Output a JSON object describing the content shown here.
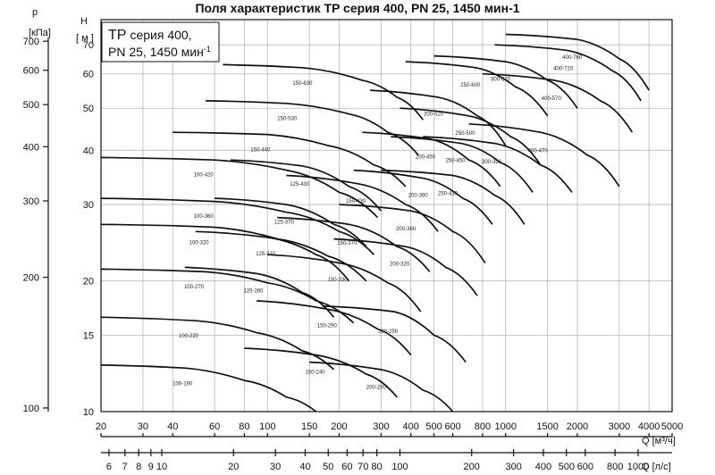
{
  "chart_data": {
    "type": "line",
    "title": "Поля характеристик TP серия 400, PN 25, 1450 мин-1",
    "legend_box": {
      "line1": "TP",
      "line1b": "серия 400,",
      "line2": "PN 25, 1450 мин",
      "line2sup": "-1"
    },
    "x_axis_label": "Q [м³/ч]",
    "x_axis_ticks": [
      "20",
      "30",
      "40",
      "60",
      "80",
      "100",
      "150",
      "200",
      "300",
      "400",
      "500",
      "600",
      "800",
      "1000",
      "1500",
      "2000",
      "3000",
      "4000",
      "5000"
    ],
    "secondary_x_axis_label": "Q [л/с]",
    "secondary_x_axis_ticks": [
      "6",
      "7",
      "8",
      "9",
      "10",
      "20",
      "30",
      "40",
      "50",
      "60",
      "70",
      "80",
      "100",
      "200",
      "300",
      "400",
      "500",
      "600",
      "800",
      "1000"
    ],
    "y_axis_label": "H [м]",
    "y_axis_label_top": "H",
    "y_axis_label_unit": "[ м ]",
    "y_axis_ticks": [
      "10",
      "15",
      "20",
      "30",
      "40",
      "50",
      "60",
      "70"
    ],
    "secondary_y_axis_label_top": "p",
    "secondary_y_axis_label_unit": "[кПа]",
    "secondary_y_axis_ticks": [
      "100",
      "200",
      "300",
      "400",
      "500",
      "600",
      "700"
    ],
    "x_scale": "log",
    "y_scale": "log",
    "xlim": [
      20,
      5000
    ],
    "ylim": [
      10,
      80
    ],
    "grid": true,
    "series": [
      {
        "name": "100-190",
        "x": [
          20,
          45,
          80,
          120,
          160
        ],
        "y": [
          12.8,
          12.6,
          11.8,
          10.8,
          10
        ]
      },
      {
        "name": "100-220",
        "x": [
          20,
          50,
          90,
          140,
          190
        ],
        "y": [
          16.5,
          16.2,
          15.2,
          13.8,
          12.5
        ]
      },
      {
        "name": "100-270",
        "x": [
          20,
          55,
          100,
          160,
          230
        ],
        "y": [
          21.3,
          21,
          19.8,
          18,
          16
        ]
      },
      {
        "name": "100-320",
        "x": [
          20,
          60,
          110,
          180,
          260
        ],
        "y": [
          27,
          26.6,
          25,
          22.8,
          20
        ]
      },
      {
        "name": "100-360",
        "x": [
          20,
          60,
          120,
          200,
          280
        ],
        "y": [
          31,
          30.5,
          28.8,
          26,
          23
        ]
      },
      {
        "name": "100-420",
        "x": [
          20,
          60,
          120,
          200,
          290
        ],
        "y": [
          38.5,
          38,
          36,
          32,
          28
        ]
      },
      {
        "name": "150-440",
        "x": [
          40,
          100,
          180,
          280,
          380
        ],
        "y": [
          44,
          43.5,
          41,
          37,
          33
        ]
      },
      {
        "name": "150-530",
        "x": [
          55,
          120,
          220,
          320,
          430
        ],
        "y": [
          52,
          51.3,
          48.5,
          44,
          39
        ]
      },
      {
        "name": "150-630",
        "x": [
          65,
          140,
          250,
          350,
          450
        ],
        "y": [
          63,
          62,
          58,
          53,
          47
        ]
      },
      {
        "name": "125-260",
        "x": [
          45,
          90,
          140,
          190
        ],
        "y": [
          21.5,
          20.8,
          18.8,
          16.5
        ]
      },
      {
        "name": "125-310",
        "x": [
          50,
          100,
          160,
          220
        ],
        "y": [
          26,
          25.2,
          23,
          20
        ]
      },
      {
        "name": "125-370",
        "x": [
          60,
          120,
          190,
          260
        ],
        "y": [
          31,
          30,
          27,
          24
        ]
      },
      {
        "name": "125-430",
        "x": [
          70,
          140,
          220,
          300
        ],
        "y": [
          38,
          36.8,
          33,
          29
        ]
      },
      {
        "name": "150-240",
        "x": [
          80,
          160,
          260,
          350
        ],
        "y": [
          14,
          13.5,
          12.2,
          10.8
        ]
      },
      {
        "name": "150-290",
        "x": [
          90,
          180,
          290,
          400
        ],
        "y": [
          18,
          17.2,
          15.5,
          13.5
        ]
      },
      {
        "name": "150-330",
        "x": [
          100,
          200,
          320,
          440
        ],
        "y": [
          23,
          22,
          19.8,
          17
        ]
      },
      {
        "name": "150-370",
        "x": [
          110,
          220,
          350,
          480
        ],
        "y": [
          28,
          27,
          24,
          21
        ]
      },
      {
        "name": "150-430",
        "x": [
          120,
          240,
          380,
          520
        ],
        "y": [
          35,
          33.5,
          30,
          26
        ]
      },
      {
        "name": "200-200",
        "x": [
          150,
          300,
          450,
          600
        ],
        "y": [
          13,
          12.5,
          11.2,
          10
        ]
      },
      {
        "name": "200-250",
        "x": [
          170,
          340,
          500,
          680
        ],
        "y": [
          17.5,
          17,
          15,
          13
        ]
      },
      {
        "name": "200-320",
        "x": [
          190,
          380,
          560,
          760
        ],
        "y": [
          25,
          24,
          21.5,
          18.5
        ]
      },
      {
        "name": "200-360",
        "x": [
          200,
          400,
          600,
          820
        ],
        "y": [
          30,
          29,
          26,
          22
        ]
      },
      {
        "name": "200-390",
        "x": [
          230,
          450,
          660,
          880
        ],
        "y": [
          36,
          34.5,
          31,
          27
        ]
      },
      {
        "name": "200-450",
        "x": [
          250,
          480,
          700,
          950
        ],
        "y": [
          44,
          42.5,
          38,
          33
        ]
      },
      {
        "name": "200-520",
        "x": [
          270,
          520,
          760,
          1000
        ],
        "y": [
          55,
          53,
          48,
          41
        ]
      },
      {
        "name": "250-410",
        "x": [
          300,
          600,
          900,
          1200
        ],
        "y": [
          36,
          35,
          31.5,
          27
        ]
      },
      {
        "name": "250-450",
        "x": [
          330,
          650,
          950,
          1300
        ],
        "y": [
          43,
          41.5,
          37.5,
          32
        ]
      },
      {
        "name": "250-500",
        "x": [
          360,
          700,
          1050,
          1400
        ],
        "y": [
          50,
          48,
          43,
          37
        ]
      },
      {
        "name": "250-600",
        "x": [
          380,
          750,
          1100,
          1500
        ],
        "y": [
          64,
          62,
          56,
          48
        ]
      },
      {
        "name": "300-390",
        "x": [
          450,
          900,
          1400,
          1900
        ],
        "y": [
          43,
          41.5,
          37,
          32
        ]
      },
      {
        "name": "300-670",
        "x": [
          500,
          1000,
          1500,
          2000
        ],
        "y": [
          66,
          64,
          58,
          50
        ]
      },
      {
        "name": "400-470",
        "x": [
          700,
          1400,
          2200,
          3000
        ],
        "y": [
          46,
          44,
          39,
          33
        ]
      },
      {
        "name": "400-570",
        "x": [
          800,
          1600,
          2500,
          3400
        ],
        "y": [
          60,
          58,
          52,
          44
        ]
      },
      {
        "name": "400-720",
        "x": [
          900,
          1800,
          2800,
          3700
        ],
        "y": [
          70,
          68,
          61,
          52
        ]
      },
      {
        "name": "400-760",
        "x": [
          1000,
          2000,
          3000,
          4000
        ],
        "y": [
          74,
          72,
          65,
          55
        ]
      }
    ]
  }
}
